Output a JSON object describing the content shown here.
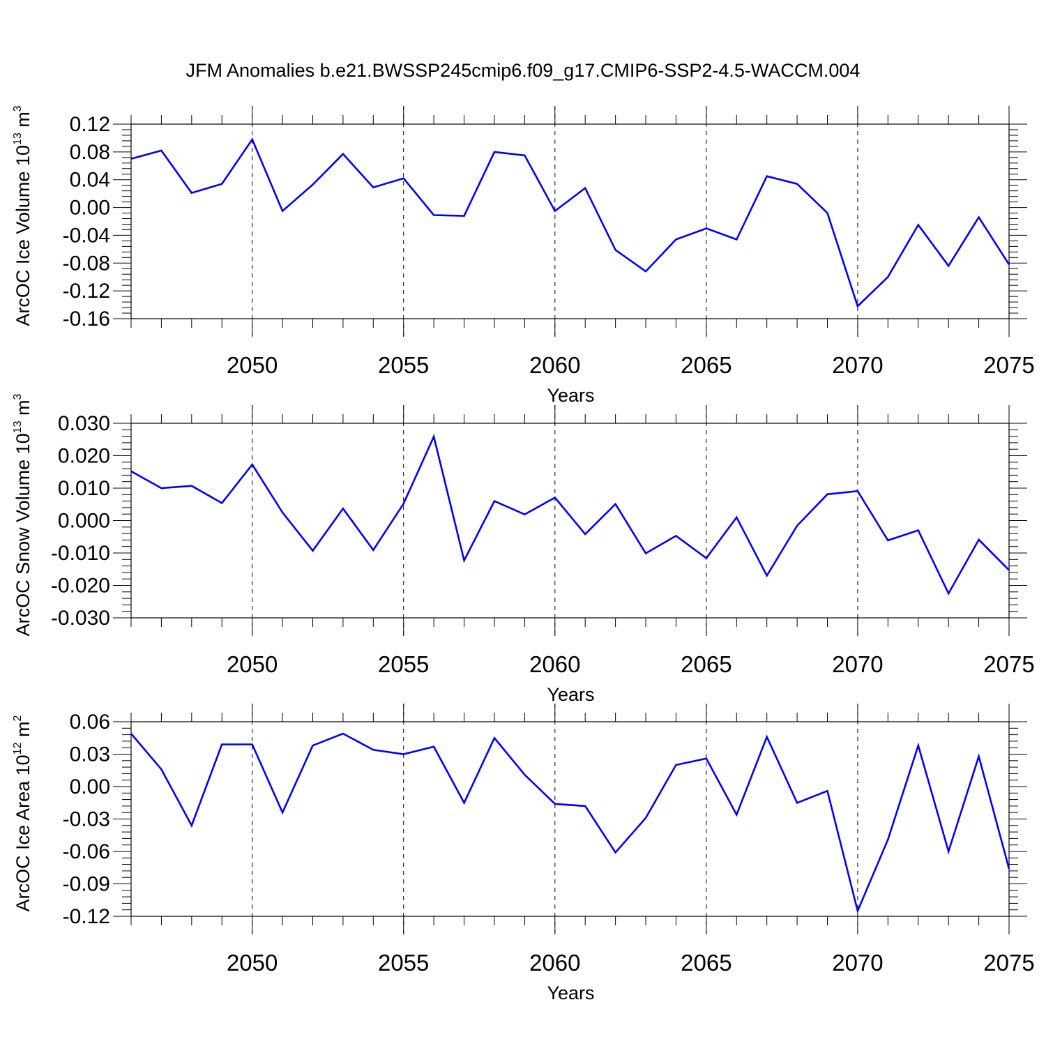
{
  "title": "JFM Anomalies b.e21.BWSSP245cmip6.f09_g17.CMIP6-SSP2-4.5-WACCM.004",
  "line_color": "#0000ff",
  "chart_data": [
    {
      "type": "line",
      "ylabel": {
        "main": "ArcOC Ice Volume 10",
        "exp": "13",
        "unit": " m",
        "unit_exp": "3"
      },
      "xlabel": "Years",
      "xlim": [
        2046,
        2075
      ],
      "ylim": [
        -0.16,
        0.12
      ],
      "yticks": [
        0.12,
        0.08,
        0.04,
        0.0,
        -0.04,
        -0.08,
        -0.12,
        -0.16
      ],
      "ytick_labels": [
        "0.12",
        "0.08",
        "0.04",
        "0.00",
        "-0.04",
        "-0.08",
        "-0.12",
        "-0.16"
      ],
      "xticks": [
        2050,
        2055,
        2060,
        2065,
        2070,
        2075
      ],
      "xtick_labels": [
        "2050",
        "2055",
        "2060",
        "2065",
        "2070",
        "2075"
      ],
      "grid_x": true,
      "x": [
        2046,
        2047,
        2048,
        2049,
        2050,
        2051,
        2052,
        2053,
        2054,
        2055,
        2056,
        2057,
        2058,
        2059,
        2060,
        2061,
        2062,
        2063,
        2064,
        2065,
        2066,
        2067,
        2068,
        2069,
        2070,
        2071,
        2072,
        2073,
        2074,
        2075
      ],
      "values": [
        0.07,
        0.082,
        0.021,
        0.034,
        0.098,
        -0.005,
        0.033,
        0.077,
        0.029,
        0.042,
        -0.011,
        -0.012,
        0.08,
        0.075,
        -0.005,
        0.028,
        -0.061,
        -0.092,
        -0.046,
        -0.03,
        -0.046,
        0.045,
        0.034,
        -0.008,
        -0.142,
        -0.1,
        -0.025,
        -0.084,
        -0.014,
        -0.082
      ]
    },
    {
      "type": "line",
      "ylabel": {
        "main": "ArcOC Snow Volume 10",
        "exp": "13",
        "unit": " m",
        "unit_exp": "3"
      },
      "xlabel": "Years",
      "xlim": [
        2046,
        2075
      ],
      "ylim": [
        -0.03,
        0.03
      ],
      "yticks": [
        0.03,
        0.02,
        0.01,
        0.0,
        -0.01,
        -0.02,
        -0.03
      ],
      "ytick_labels": [
        "0.030",
        "0.020",
        "0.010",
        "0.000",
        "-0.010",
        "-0.020",
        "-0.030"
      ],
      "xticks": [
        2050,
        2055,
        2060,
        2065,
        2070,
        2075
      ],
      "xtick_labels": [
        "2050",
        "2055",
        "2060",
        "2065",
        "2070",
        "2075"
      ],
      "grid_x": true,
      "x": [
        2046,
        2047,
        2048,
        2049,
        2050,
        2051,
        2052,
        2053,
        2054,
        2055,
        2056,
        2057,
        2058,
        2059,
        2060,
        2061,
        2062,
        2063,
        2064,
        2065,
        2066,
        2067,
        2068,
        2069,
        2070,
        2071,
        2072,
        2073,
        2074,
        2075
      ],
      "values": [
        0.0152,
        0.01,
        0.0107,
        0.0054,
        0.0173,
        0.0025,
        -0.0093,
        0.0037,
        -0.0091,
        0.0052,
        0.0259,
        -0.0123,
        0.006,
        0.0019,
        0.0071,
        -0.0042,
        0.0051,
        -0.0101,
        -0.0047,
        -0.0116,
        0.001,
        -0.017,
        -0.0016,
        0.0081,
        0.0091,
        -0.0061,
        -0.003,
        -0.0225,
        -0.0059,
        -0.0153
      ]
    },
    {
      "type": "line",
      "ylabel": {
        "main": "ArcOC Ice Area 10",
        "exp": "12",
        "unit": " m",
        "unit_exp": "2"
      },
      "xlabel": "Years",
      "xlim": [
        2046,
        2075
      ],
      "ylim": [
        -0.12,
        0.06
      ],
      "yticks": [
        0.06,
        0.03,
        0.0,
        -0.03,
        -0.06,
        -0.09,
        -0.12
      ],
      "ytick_labels": [
        "0.06",
        "0.03",
        "0.00",
        "-0.03",
        "-0.06",
        "-0.09",
        "-0.12"
      ],
      "xticks": [
        2050,
        2055,
        2060,
        2065,
        2070,
        2075
      ],
      "xtick_labels": [
        "2050",
        "2055",
        "2060",
        "2065",
        "2070",
        "2075"
      ],
      "grid_x": true,
      "x": [
        2046,
        2047,
        2048,
        2049,
        2050,
        2051,
        2052,
        2053,
        2054,
        2055,
        2056,
        2057,
        2058,
        2059,
        2060,
        2061,
        2062,
        2063,
        2064,
        2065,
        2066,
        2067,
        2068,
        2069,
        2070,
        2071,
        2072,
        2073,
        2074,
        2075
      ],
      "values": [
        0.049,
        0.016,
        -0.036,
        0.039,
        0.039,
        -0.024,
        0.038,
        0.049,
        0.034,
        0.03,
        0.037,
        -0.015,
        0.045,
        0.011,
        -0.016,
        -0.018,
        -0.061,
        -0.029,
        0.02,
        0.026,
        -0.026,
        0.046,
        -0.015,
        -0.004,
        -0.115,
        -0.049,
        0.038,
        -0.06,
        0.028,
        -0.076
      ]
    }
  ]
}
